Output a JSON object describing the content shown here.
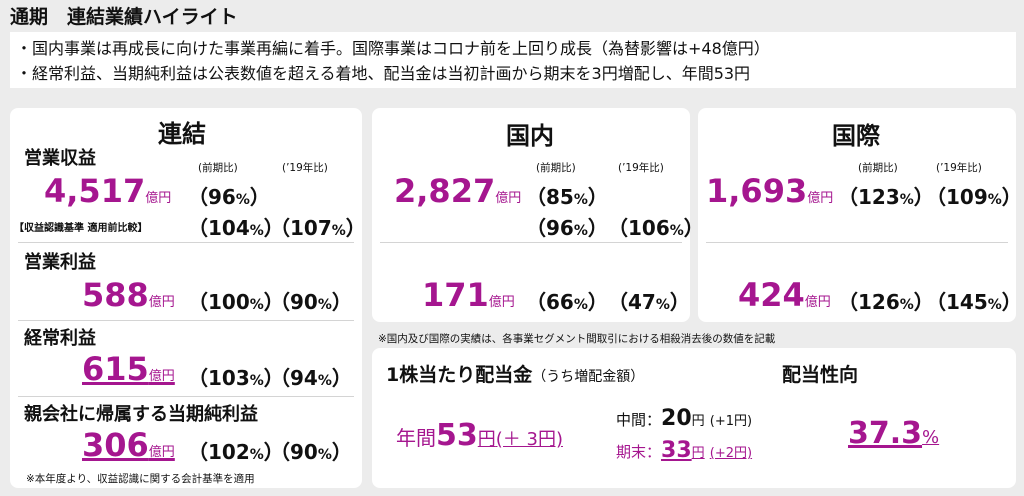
{
  "header": {
    "title": "通期　連結業績ハイライト",
    "bullets": [
      "・国内事業は再成長に向けた事業再編に着手。国際事業はコロナ前を上回り成長（為替影響は+48億円）",
      "・経常利益、当期純利益は公表数値を超える着地、配当金は当初計画から期末を3円増配し、年間53円"
    ]
  },
  "colors": {
    "accent": "#a5168f",
    "panel": "#ffffff",
    "background": "#ececec"
  },
  "consolidated": {
    "title": "連結",
    "revenue": {
      "label": "営業収益",
      "prev_label": "(前期比)",
      "y19_label": "(’19年比)",
      "value": "4,517",
      "unit": "億円",
      "yoy": "（96",
      "yoy_sign": "%",
      "yoy_close": "）",
      "note_label": "【収益認識基準 適用前比較】",
      "adj_yoy": "（104",
      "adj_y19": "（107",
      "pct_sign": "%",
      "close": "）"
    },
    "op_income": {
      "label": "営業利益",
      "value": "588",
      "unit": "億円",
      "yoy": "（100",
      "y19": "（90"
    },
    "ord_income": {
      "label": "経常利益",
      "value": "615",
      "unit": "億円",
      "yoy": "（103",
      "y19": "（94"
    },
    "net_income": {
      "label": "親会社に帰属する当期純利益",
      "value": "306",
      "unit": "億円",
      "yoy": "（102",
      "y19": "（90"
    },
    "footnote": "※本年度より、収益認識に関する会計基準を適用"
  },
  "domestic": {
    "title": "国内",
    "prev_label": "(前期比)",
    "y19_label": "(’19年比)",
    "revenue": {
      "value": "2,827",
      "unit": "億円",
      "yoy": "（85",
      "adj_yoy": "（96",
      "adj_y19": "（106"
    },
    "op_income": {
      "value": "171",
      "unit": "億円",
      "yoy": "（66",
      "y19": "（47"
    }
  },
  "international": {
    "title": "国際",
    "prev_label": "(前期比)",
    "y19_label": "(’19年比)",
    "revenue": {
      "value": "1,693",
      "unit": "億円",
      "yoy": "（123",
      "y19": "（109"
    },
    "op_income": {
      "value": "424",
      "unit": "億円",
      "yoy": "（126",
      "y19": "（145"
    }
  },
  "segment_note": "※国内及び国際の実績は、各事業セグメント間取引における相殺消去後の数値を記載",
  "dividend": {
    "title": "1株当たり配当金",
    "subtitle": "（うち増配金額）",
    "annual_label": "年間",
    "annual_value": "53",
    "annual_unit": "円",
    "annual_increase": "(＋ 3円)",
    "interim_label": "中間：",
    "interim_value": "20",
    "interim_unit": "円",
    "interim_increase": "(+1円)",
    "final_label": "期末：",
    "final_value": "33",
    "final_unit": "円",
    "final_increase": "(+2円)"
  },
  "payout": {
    "title": "配当性向",
    "value": "37.3",
    "unit": "%"
  }
}
